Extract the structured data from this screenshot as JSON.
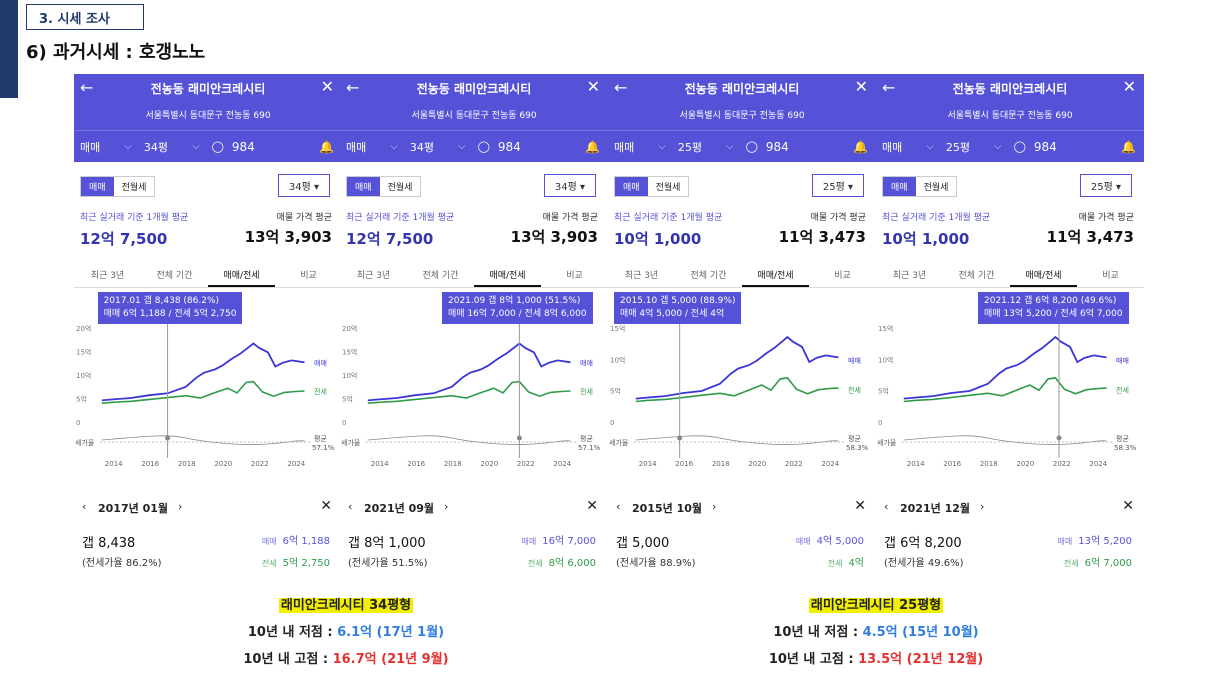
{
  "section_tag": "3. 시세 조사",
  "page_title": "6) 과거시세 : 호갱노노",
  "colors": {
    "purple": "#5552d8",
    "sale_line": "#3a35d6",
    "jeonse_line": "#2e9b49",
    "highlight": "#f2f000"
  },
  "common": {
    "apt_name": "전농동 래미안크레시티",
    "address": "서울특별시 동대문구 전농동 690",
    "trade_type": "매매",
    "view_count": "984",
    "toggle_sale": "매매",
    "toggle_jeonse": "전월세",
    "avg_left_label": "최근 실거래 기준 1개월 평균",
    "avg_right_label": "매물 가격 평균",
    "tabs": [
      "최근 3년",
      "전체 기간",
      "매매/전세",
      "비교"
    ],
    "legend_sale": "매매",
    "legend_jeonse": "전세",
    "legend_avg": "평균",
    "ratio_axis_label": "세가율",
    "x_ticks": [
      "2014",
      "2016",
      "2018",
      "2020",
      "2022",
      "2024"
    ],
    "sale_label": "매매",
    "jeonse_label": "전세"
  },
  "panels": [
    {
      "size": "34평",
      "recent_avg": "12억 7,500",
      "listing_avg": "13억 3,903",
      "y_ticks": [
        "20억",
        "15억",
        "10억",
        "5억",
        "0"
      ],
      "avg_ratio": "57.1%",
      "tooltip_line1": "2017.01  갭 8,438 (86.2%)",
      "tooltip_line2": "매매 6억 1,188 / 전세 5억 2,750",
      "detail_date": "2017년 01월",
      "gap": "갭 8,438",
      "gap_rate": "(전세가율 86.2%)",
      "sale_price": "6억 1,188",
      "jeonse_price": "5억 2,750",
      "cursor_year": 2017.0
    },
    {
      "size": "34평",
      "recent_avg": "12억 7,500",
      "listing_avg": "13억 3,903",
      "y_ticks": [
        "20억",
        "15억",
        "10억",
        "5억",
        "0"
      ],
      "avg_ratio": "57.1%",
      "tooltip_line1": "2021.09  갭 8억 1,000 (51.5%)",
      "tooltip_line2": "매매 16억 7,000 / 전세 8억 6,000",
      "detail_date": "2021년 09월",
      "gap": "갭 8억 1,000",
      "gap_rate": "(전세가율 51.5%)",
      "sale_price": "16억 7,000",
      "jeonse_price": "8억 6,000",
      "cursor_year": 2021.7
    },
    {
      "size": "25평",
      "recent_avg": "10억 1,000",
      "listing_avg": "11억 3,473",
      "y_ticks": [
        "15억",
        "10억",
        "5억",
        "0"
      ],
      "avg_ratio": "58.3%",
      "tooltip_line1": "2015.10  갭 5,000 (88.9%)",
      "tooltip_line2": "매매 4억 5,000 / 전세 4억",
      "detail_date": "2015년 10월",
      "gap": "갭 5,000",
      "gap_rate": "(전세가율 88.9%)",
      "sale_price": "4억 5,000",
      "jeonse_price": "4억",
      "cursor_year": 2015.8
    },
    {
      "size": "25평",
      "recent_avg": "10억 1,000",
      "listing_avg": "11억 3,473",
      "y_ticks": [
        "15억",
        "10억",
        "5억",
        "0"
      ],
      "avg_ratio": "58.3%",
      "tooltip_line1": "2021.12  갭 6억 8,200 (49.6%)",
      "tooltip_line2": "매매 13억 5,200 / 전세 6억 7,000",
      "detail_date": "2021년 12월",
      "gap": "갭 6억 8,200",
      "gap_rate": "(전세가율 49.6%)",
      "sale_price": "13억 5,200",
      "jeonse_price": "6억 7,000",
      "cursor_year": 2021.9
    }
  ],
  "summaries": [
    {
      "title": "래미안크레시티 34평형",
      "low_label": "10년 내 저점 : ",
      "low_value": "6.1억 (17년 1월)",
      "high_label": "10년 내 고점 : ",
      "high_value": "16.7억 (21년 9월)"
    },
    {
      "title": "래미안크레시티 25평형",
      "low_label": "10년 내 저점 : ",
      "low_value": "4.5억 (15년 10월)",
      "high_label": "10년 내 고점 : ",
      "high_value": "13.5억 (21년 12월)"
    }
  ]
}
